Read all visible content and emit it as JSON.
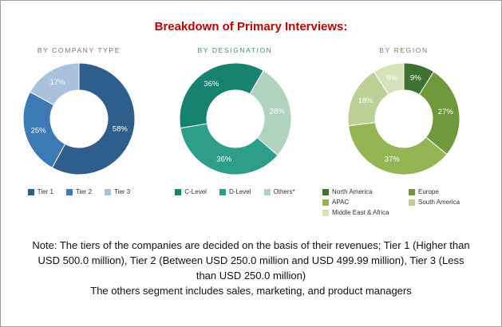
{
  "header": {
    "title": "Breakdown of Primary Interviews:"
  },
  "colors": {
    "title": "#C00000"
  },
  "note": {
    "line1": "Note: The tiers of the companies are decided on the basis of their revenues; Tier 1 (Higher than USD 500.0 million), Tier 2 (Between USD 250.0 million and USD 499.99 million), Tier 3 (Less than USD 250.0 million)",
    "line2": "The others segment includes sales, marketing, and product managers"
  },
  "chart_data": [
    {
      "type": "pie",
      "donut": true,
      "title": "BY COMPANY TYPE",
      "title_color": "#5A7A96",
      "start_angle": 0,
      "slices": [
        {
          "label": "Tier 1",
          "value": 58,
          "color": "#2E5E8C"
        },
        {
          "label": "Tier 2",
          "value": 25,
          "color": "#3C7AB6"
        },
        {
          "label": "Tier 3",
          "value": 17,
          "color": "#A9C1DD"
        }
      ],
      "legend_order": [
        0,
        1,
        2
      ],
      "legend_position": "bottom"
    },
    {
      "type": "pie",
      "donut": true,
      "title": "BY DESIGNATION",
      "title_color": "#46897D",
      "start_angle": 30,
      "slices": [
        {
          "label": "Others*",
          "value": 28,
          "color": "#B0D3BF"
        },
        {
          "label": "D-Level",
          "value": 36,
          "color": "#2E9E8A"
        },
        {
          "label": "C-Level",
          "value": 36,
          "color": "#17826F"
        }
      ],
      "legend_order": [
        2,
        1,
        0
      ],
      "legend_position": "bottom"
    },
    {
      "type": "pie",
      "donut": true,
      "title": "BY REGION",
      "title_color": "#6B8C55",
      "start_angle": 0,
      "slices": [
        {
          "label": "North America",
          "value": 9,
          "color": "#3F7230"
        },
        {
          "label": "Europe",
          "value": 27,
          "color": "#6F9A3C"
        },
        {
          "label": "APAC",
          "value": 37,
          "color": "#93B554"
        },
        {
          "label": "South America",
          "value": 18,
          "color": "#BCCF95"
        },
        {
          "label": "Middle East & Africa",
          "value": 9,
          "color": "#D8E2BA"
        }
      ],
      "legend_order": [
        0,
        1,
        2,
        3,
        4
      ],
      "legend_position": "bottom"
    }
  ]
}
